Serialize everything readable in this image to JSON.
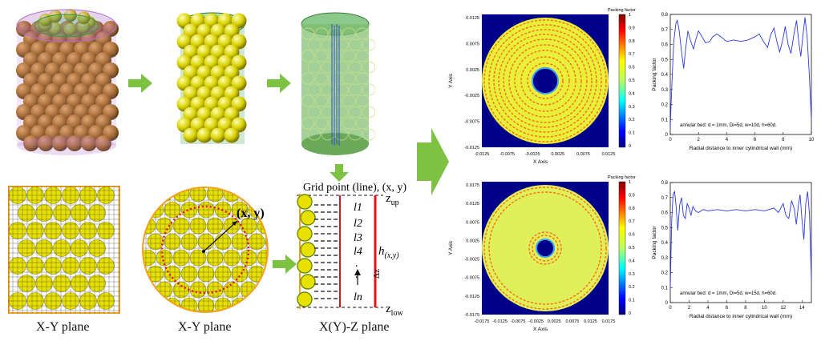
{
  "captions": {
    "xy_plane_square": "X-Y plane",
    "xy_plane_circle": "X-Y plane",
    "xz_plane": "X(Y)-Z plane",
    "grid_point_line": "Grid point (line), (x, y)"
  },
  "labels": {
    "point_xy": "(x, y)",
    "z_up": "z",
    "z_up_sub": "up",
    "z_low": "z",
    "z_low_sub": "low",
    "height": "h",
    "height_sub": "(x,y)",
    "segments": [
      "l1",
      "l2",
      "l3",
      "l4",
      ".",
      ".",
      "ln"
    ],
    "dz": "Δz"
  },
  "colors": {
    "arrow_green": "#7dc242",
    "sphere_yellow": "#e8e000",
    "sphere_brown": "#a8701a",
    "frame_orange": "#f3a21c",
    "dash_red": "#e0141b"
  },
  "heatmaps": [
    {
      "colorbar_title": "Packing factor",
      "colorbar_ticks": [
        "1",
        "0.9",
        "0.8",
        "0.7",
        "0.6",
        "0.5",
        "0.4",
        "0.3",
        "0.2",
        "0.1",
        "0"
      ],
      "yaxis_title": "Y Axis",
      "xaxis_title": "X Axis",
      "yticks": [
        "0.0125",
        "0.0075",
        "0.0025",
        "-0.0025",
        "-0.0075",
        "-0.0125"
      ],
      "xticks": [
        "-0.0125",
        "-0.0075",
        "-0.0025",
        "0.0025",
        "0.0075",
        "0.0125"
      ]
    },
    {
      "colorbar_title": "Packing factor",
      "colorbar_ticks": [
        "1",
        "0.9",
        "0.8",
        "0.7",
        "0.6",
        "0.5",
        "0.4",
        "0.3",
        "0.2",
        "0.1",
        "0"
      ],
      "yaxis_title": "Y Axis",
      "xaxis_title": "X Axis",
      "yticks": [
        "0.0175",
        "0.0125",
        "0.0075",
        "0.0025",
        "-0.0025",
        "-0.0075",
        "-0.0125",
        "-0.0175"
      ],
      "xticks": [
        "-0.0175",
        "-0.0125",
        "-0.0075",
        "-0.0025",
        "0.0025",
        "0.0075",
        "0.0125",
        "0.0175"
      ]
    }
  ],
  "chart_data": [
    {
      "type": "line",
      "title": "",
      "annotation": "annular bed: d = 1mm, Di=5d, w=10d, h=60d.",
      "xlabel": "Radial distance to inner cylindrical wall (mm)",
      "ylabel": "Packing factor",
      "xlim": [
        0,
        10
      ],
      "ylim": [
        0,
        0.8
      ],
      "xticks": [
        0,
        2,
        4,
        6,
        8,
        10
      ],
      "yticks": [
        0,
        0.1,
        0.2,
        0.3,
        0.4,
        0.5,
        0.6,
        0.7,
        0.8
      ],
      "series": [
        {
          "x": [
            0.0,
            0.12,
            0.25,
            0.4,
            0.5,
            0.62,
            0.8,
            0.95,
            1.1,
            1.25,
            1.45,
            1.65,
            1.8,
            2.0,
            2.2,
            2.5,
            2.8,
            3.0,
            3.3,
            3.6,
            4.0,
            4.5,
            5.0,
            5.5,
            6.0,
            6.3,
            6.6,
            6.9,
            7.1,
            7.35,
            7.55,
            7.75,
            7.95,
            8.15,
            8.35,
            8.55,
            8.75,
            8.95,
            9.1,
            9.25,
            9.4,
            9.55,
            9.7,
            9.85,
            10.0
          ],
          "values": [
            0.05,
            0.35,
            0.62,
            0.74,
            0.76,
            0.7,
            0.55,
            0.44,
            0.58,
            0.69,
            0.62,
            0.57,
            0.63,
            0.69,
            0.66,
            0.61,
            0.62,
            0.65,
            0.67,
            0.65,
            0.62,
            0.63,
            0.62,
            0.63,
            0.65,
            0.67,
            0.62,
            0.58,
            0.66,
            0.71,
            0.62,
            0.55,
            0.62,
            0.72,
            0.6,
            0.54,
            0.66,
            0.76,
            0.62,
            0.52,
            0.66,
            0.78,
            0.65,
            0.4,
            0.1
          ]
        }
      ]
    },
    {
      "type": "line",
      "title": "",
      "annotation": "annular bed: d = 1mm, Di=5d, w=15d, h=60d.",
      "xlabel": "Radial distance to inner cylindrical wall (mm)",
      "ylabel": "Packing factor",
      "xlim": [
        0,
        15
      ],
      "ylim": [
        0,
        0.8
      ],
      "xticks": [
        0,
        2,
        4,
        6,
        8,
        10,
        12,
        14
      ],
      "yticks": [
        0,
        0.1,
        0.2,
        0.3,
        0.4,
        0.5,
        0.6,
        0.7,
        0.8
      ],
      "series": [
        {
          "x": [
            0.0,
            0.15,
            0.3,
            0.45,
            0.6,
            0.8,
            1.0,
            1.2,
            1.4,
            1.6,
            1.8,
            2.0,
            2.2,
            2.4,
            2.7,
            3.0,
            3.5,
            4.0,
            5.0,
            6.0,
            7.0,
            8.0,
            9.0,
            10.0,
            11.0,
            11.5,
            12.0,
            12.3,
            12.6,
            12.9,
            13.2,
            13.4,
            13.6,
            13.8,
            14.0,
            14.2,
            14.4,
            14.6,
            14.8,
            15.0
          ],
          "values": [
            0.1,
            0.55,
            0.72,
            0.74,
            0.66,
            0.48,
            0.65,
            0.7,
            0.58,
            0.56,
            0.66,
            0.63,
            0.58,
            0.64,
            0.61,
            0.6,
            0.62,
            0.61,
            0.62,
            0.61,
            0.62,
            0.61,
            0.62,
            0.61,
            0.63,
            0.6,
            0.66,
            0.58,
            0.56,
            0.68,
            0.62,
            0.52,
            0.64,
            0.72,
            0.55,
            0.42,
            0.66,
            0.74,
            0.58,
            0.15
          ]
        }
      ]
    }
  ]
}
